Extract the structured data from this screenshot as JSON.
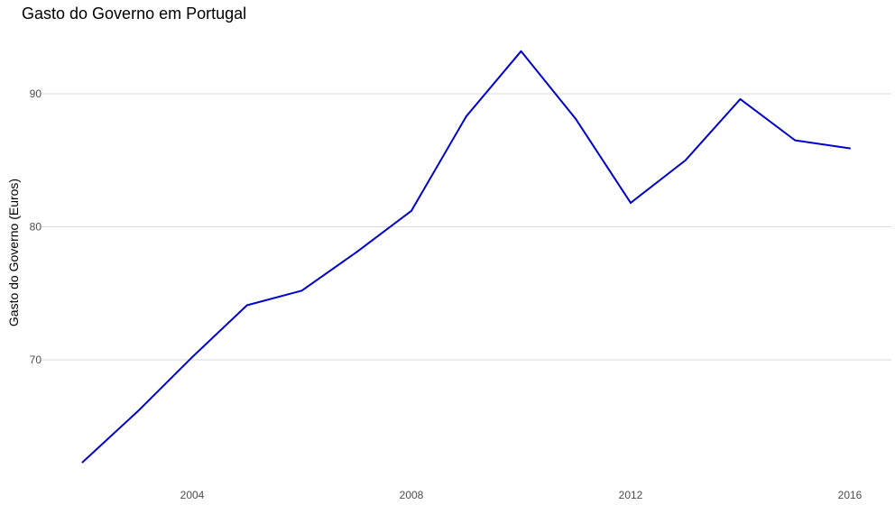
{
  "chart_data": {
    "type": "line",
    "title": "Gasto do Governo em Portugal",
    "xlabel": "",
    "ylabel": "Gasto do Governo (Euros)",
    "x": [
      2002,
      2003,
      2004,
      2005,
      2006,
      2007,
      2008,
      2009,
      2010,
      2011,
      2012,
      2013,
      2014,
      2015,
      2016
    ],
    "series": [
      {
        "name": "Gasto do Governo",
        "color": "#0000CC",
        "values": [
          62.3,
          66.1,
          70.2,
          74.1,
          75.2,
          78.1,
          81.2,
          88.3,
          93.2,
          88.1,
          81.8,
          85.0,
          89.6,
          86.5,
          85.9
        ]
      }
    ],
    "x_ticks": [
      2004,
      2008,
      2012,
      2016
    ],
    "y_ticks": [
      70,
      80,
      90
    ],
    "xlim": [
      2001.6,
      2016.4
    ],
    "ylim": [
      61.5,
      94.0
    ],
    "grid": "horizontal major",
    "legend": "none"
  }
}
